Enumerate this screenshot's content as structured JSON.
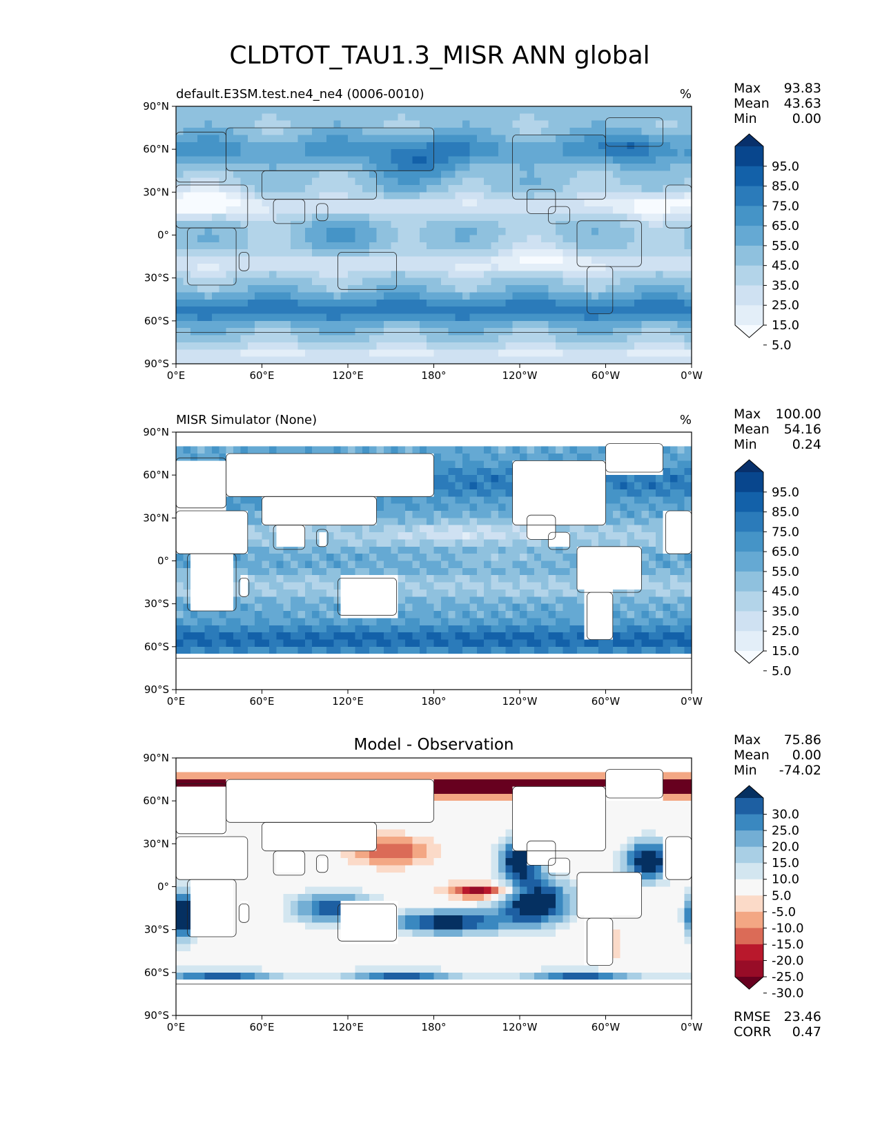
{
  "figure": {
    "title": "CLDTOT_TAU1.3_MISR ANN global"
  },
  "chart_data": [
    {
      "type": "heatmap",
      "title": "default.E3SM.test.ne4_ne4 (0006-0010)",
      "units": "%",
      "projection": "PlateCarree",
      "x_ticks": [
        "0°E",
        "60°E",
        "120°E",
        "180°",
        "120°W",
        "60°W",
        "0°W"
      ],
      "y_ticks": [
        "90°N",
        "60°N",
        "30°N",
        "0°",
        "30°S",
        "60°S",
        "90°S"
      ],
      "xlim": [
        0,
        360
      ],
      "ylim": [
        -90,
        90
      ],
      "stats": [
        {
          "label": "Max",
          "value": "93.83"
        },
        {
          "label": "Mean",
          "value": "43.63"
        },
        {
          "label": "Min",
          "value": "0.00"
        }
      ],
      "colorbar": {
        "extend": "both",
        "labels": [
          "95.0",
          "85.0",
          "75.0",
          "65.0",
          "55.0",
          "45.0",
          "35.0",
          "25.0",
          "15.0",
          "5.0"
        ],
        "colors": [
          "#08306b",
          "#08468d",
          "#1361a9",
          "#2b7bba",
          "#4594c7",
          "#65a9d3",
          "#8fc1de",
          "#b3d4e9",
          "#cfe1f2",
          "#e3eef8",
          "#f7fbff"
        ]
      },
      "field": "model",
      "mask_land": false
    },
    {
      "type": "heatmap",
      "title": "MISR Simulator (None)",
      "units": "%",
      "projection": "PlateCarree",
      "x_ticks": [
        "0°E",
        "60°E",
        "120°E",
        "180°",
        "120°W",
        "60°W",
        "0°W"
      ],
      "y_ticks": [
        "90°N",
        "60°N",
        "30°N",
        "0°",
        "30°S",
        "60°S",
        "90°S"
      ],
      "xlim": [
        0,
        360
      ],
      "ylim": [
        -90,
        90
      ],
      "stats": [
        {
          "label": "Max",
          "value": "100.00"
        },
        {
          "label": "Mean",
          "value": "54.16"
        },
        {
          "label": "Min",
          "value": "0.24"
        }
      ],
      "colorbar": {
        "extend": "both",
        "labels": [
          "95.0",
          "85.0",
          "75.0",
          "65.0",
          "55.0",
          "45.0",
          "35.0",
          "25.0",
          "15.0",
          "5.0"
        ],
        "colors": [
          "#08306b",
          "#08468d",
          "#1361a9",
          "#2b7bba",
          "#4594c7",
          "#65a9d3",
          "#8fc1de",
          "#b3d4e9",
          "#cfe1f2",
          "#e3eef8",
          "#f7fbff"
        ]
      },
      "field": "obs",
      "mask_land": true
    },
    {
      "type": "heatmap",
      "title": "Model - Observation",
      "units": "",
      "projection": "PlateCarree",
      "x_ticks": [
        "0°E",
        "60°E",
        "120°E",
        "180°",
        "120°W",
        "60°W",
        "0°W"
      ],
      "y_ticks": [
        "90°N",
        "60°N",
        "30°N",
        "0°",
        "30°S",
        "60°S",
        "90°S"
      ],
      "xlim": [
        0,
        360
      ],
      "ylim": [
        -90,
        90
      ],
      "stats": [
        {
          "label": "Max",
          "value": "75.86"
        },
        {
          "label": "Mean",
          "value": "0.00"
        },
        {
          "label": "Min",
          "value": "-74.02"
        }
      ],
      "colorbar": {
        "extend": "both",
        "labels": [
          "30.0",
          "25.0",
          "20.0",
          "15.0",
          "10.0",
          "5.0",
          "-5.0",
          "-10.0",
          "-15.0",
          "-20.0",
          "-25.0",
          "-30.0"
        ],
        "colors": [
          "#053061",
          "#1d5fa2",
          "#3a88c0",
          "#73aed4",
          "#a9cfe5",
          "#d3e6f0",
          "#f7f7f7",
          "#fbdac8",
          "#f3a784",
          "#db6b57",
          "#b9182c",
          "#980c27",
          "#67001f"
        ]
      },
      "field": "diff",
      "mask_land": true,
      "metrics": [
        {
          "label": "RMSE",
          "value": "23.46"
        },
        {
          "label": "CORR",
          "value": "0.47"
        }
      ]
    }
  ]
}
